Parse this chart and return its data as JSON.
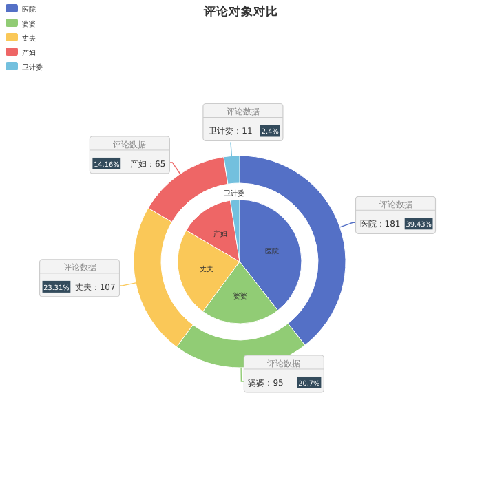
{
  "chart_data": [
    {
      "type": "donut",
      "title": "评论对象对比",
      "legend": "top left",
      "categories": [
        "医院",
        "婆婆",
        "丈夫",
        "产妇",
        "卫计委"
      ],
      "colors": [
        "#5470c6",
        "#91cc75",
        "#fac858",
        "#ee6666",
        "#73c0de"
      ],
      "series": [
        {
          "name": "评论数据",
          "values": [
            181,
            95,
            107,
            65,
            11
          ],
          "value_labels": [
            "医院：181",
            "婆婆：95",
            "丈夫：107",
            "产妇：65",
            "卫计委：11"
          ]
        }
      ],
      "annotations": [
        "39.43%",
        "20.7%",
        "23.31%",
        "14.16%",
        "2.4%"
      ]
    },
    {
      "type": "pie",
      "categories": [
        "医院",
        "婆婆",
        "丈夫",
        "产妇",
        "卫计委"
      ],
      "colors": [
        "#5470c6",
        "#91cc75",
        "#fac858",
        "#ee6666",
        "#73c0de"
      ],
      "values": [
        39.43,
        20.7,
        23.31,
        14.16,
        2.4
      ]
    }
  ]
}
